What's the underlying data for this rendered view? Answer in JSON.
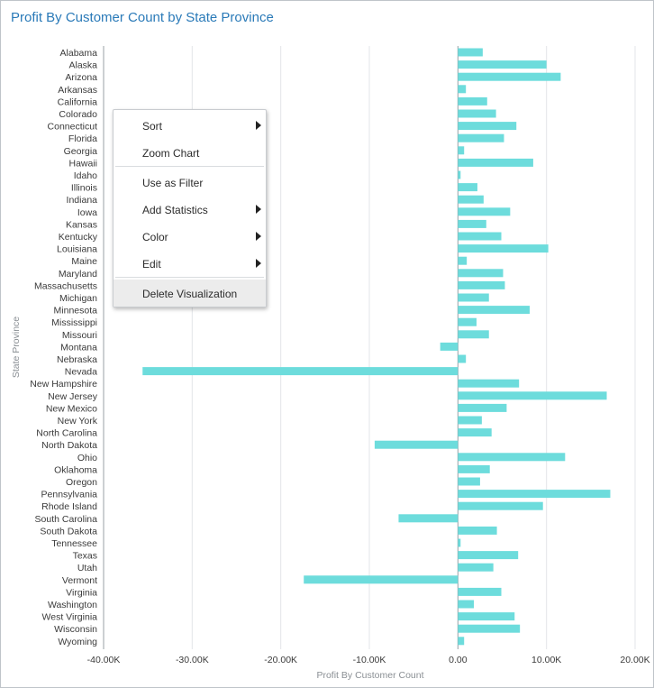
{
  "header": {
    "title": "Profit By Customer Count by State Province"
  },
  "menu": {
    "items": [
      {
        "label": "Sort",
        "submenu": true
      },
      {
        "label": "Zoom Chart",
        "submenu": false
      },
      {
        "label": "Use as Filter",
        "submenu": false
      },
      {
        "label": "Add Statistics",
        "submenu": true
      },
      {
        "label": "Color",
        "submenu": true
      },
      {
        "label": "Edit",
        "submenu": true
      },
      {
        "label": "Delete Visualization",
        "submenu": false,
        "highlighted": true
      }
    ]
  },
  "chart_data": {
    "type": "bar",
    "orientation": "horizontal",
    "title": "Profit By Customer Count by State Province",
    "xlabel": "Profit By Customer Count",
    "ylabel": "State Province",
    "xlim": [
      -40000,
      20000
    ],
    "xticks": [
      -40000,
      -30000,
      -20000,
      -10000,
      0,
      10000,
      20000
    ],
    "xtick_labels": [
      "-40.00K",
      "-30.00K",
      "-20.00K",
      "-10.00K",
      "0.00",
      "10.00K",
      "20.00K"
    ],
    "grid": true,
    "bar_color": "#6ddcdc",
    "categories": [
      "Alabama",
      "Alaska",
      "Arizona",
      "Arkansas",
      "California",
      "Colorado",
      "Connecticut",
      "Florida",
      "Georgia",
      "Hawaii",
      "Idaho",
      "Illinois",
      "Indiana",
      "Iowa",
      "Kansas",
      "Kentucky",
      "Louisiana",
      "Maine",
      "Maryland",
      "Massachusetts",
      "Michigan",
      "Minnesota",
      "Mississippi",
      "Missouri",
      "Montana",
      "Nebraska",
      "Nevada",
      "New Hampshire",
      "New Jersey",
      "New Mexico",
      "New York",
      "North Carolina",
      "North Dakota",
      "Ohio",
      "Oklahoma",
      "Oregon",
      "Pennsylvania",
      "Rhode Island",
      "South Carolina",
      "South Dakota",
      "Tennessee",
      "Texas",
      "Utah",
      "Vermont",
      "Virginia",
      "Washington",
      "West Virginia",
      "Wisconsin",
      "Wyoming"
    ],
    "values": [
      2800,
      10000,
      11600,
      900,
      3300,
      4300,
      6600,
      5200,
      700,
      8500,
      300,
      2200,
      2900,
      5900,
      3200,
      4900,
      10200,
      1000,
      5100,
      5300,
      3500,
      8100,
      2100,
      3500,
      -2000,
      900,
      -35600,
      6900,
      16800,
      5500,
      2700,
      3800,
      -9400,
      12100,
      3600,
      2500,
      17200,
      9600,
      -6700,
      4400,
      300,
      6800,
      4000,
      -17400,
      4900,
      1800,
      6400,
      7000,
      700
    ]
  }
}
